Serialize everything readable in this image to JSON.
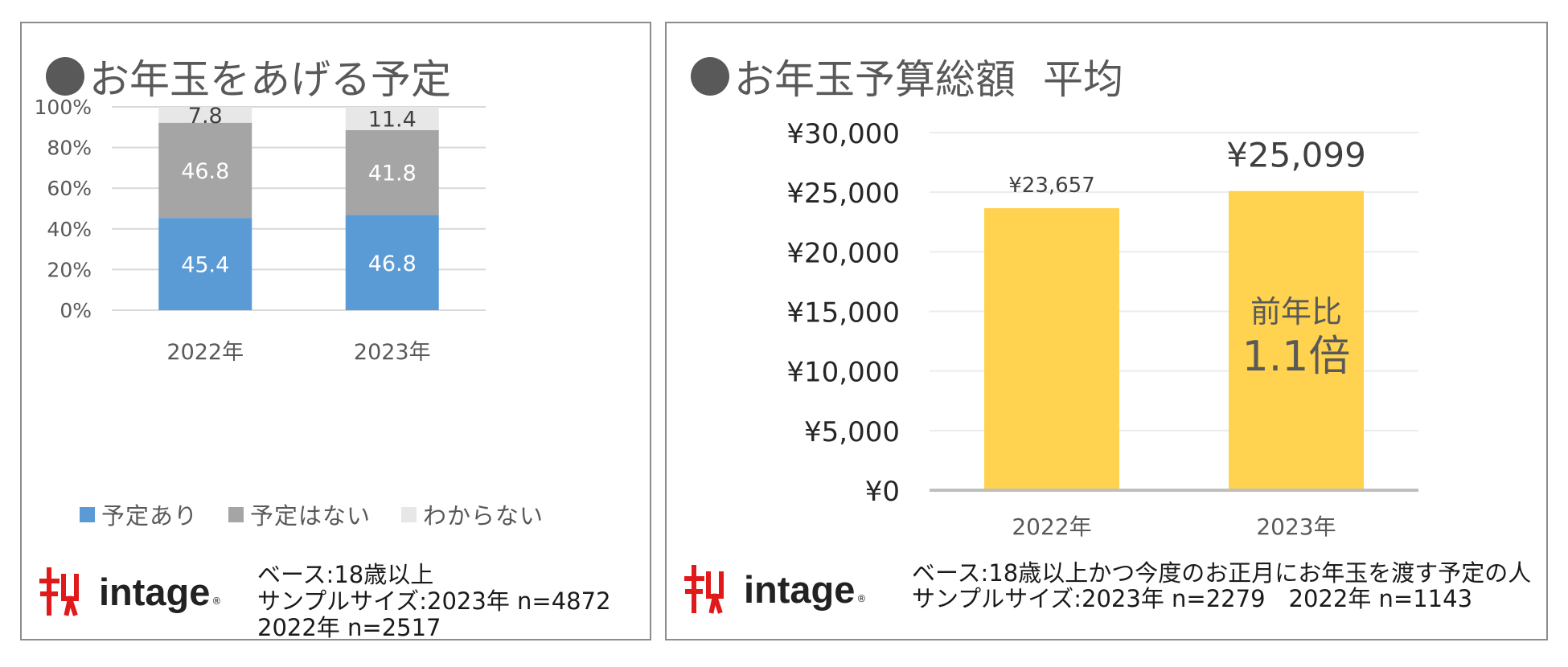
{
  "left_panel": {
    "title": "お年玉をあげる予定",
    "note_lines": [
      "ベース:18歳以上",
      "サンプルサイズ:2023年 n=4872",
      "2022年 n=2517"
    ],
    "logo_text": "intage"
  },
  "right_panel": {
    "title_a": "お年玉予算総額",
    "title_b": "平均",
    "ratio_label": "前年比",
    "ratio_value": "1.1倍",
    "note_lines": [
      "ベース:18歳以上かつ今度のお正月にお年玉を渡す予定の人",
      "サンプルサイズ:2023年 n=2279　2022年 n=1143"
    ],
    "logo_text": "intage"
  },
  "chart_data": [
    {
      "type": "bar",
      "stacked": true,
      "percent": true,
      "categories": [
        "2022年",
        "2023年"
      ],
      "series": [
        {
          "name": "予定あり",
          "values": [
            45.4,
            46.8
          ],
          "labels": [
            "45.4",
            "46.8"
          ],
          "color": "#5b9bd5",
          "label_color": "#ffffff"
        },
        {
          "name": "予定はない",
          "values": [
            46.8,
            41.8
          ],
          "labels": [
            "46.8",
            "41.8"
          ],
          "color": "#a5a5a5",
          "label_color": "#ffffff"
        },
        {
          "name": "わからない",
          "values": [
            7.8,
            11.4
          ],
          "labels": [
            "7.8",
            "11.4"
          ],
          "color": "#e7e7e7",
          "label_color": "#404040"
        }
      ],
      "yticks": [
        "0%",
        "20%",
        "40%",
        "60%",
        "80%",
        "100%"
      ],
      "ylim": [
        0,
        100
      ],
      "grid": true,
      "legend_position": "bottom"
    },
    {
      "type": "bar",
      "categories": [
        "2022年",
        "2023年"
      ],
      "values": [
        23657,
        25099
      ],
      "value_labels": [
        "¥23,657",
        "¥25,099"
      ],
      "color": "#ffd34f",
      "yticks": [
        "¥0",
        "¥5,000",
        "¥10,000",
        "¥15,000",
        "¥20,000",
        "¥25,000",
        "¥30,000"
      ],
      "ylim": [
        0,
        30000
      ],
      "grid": true
    }
  ]
}
